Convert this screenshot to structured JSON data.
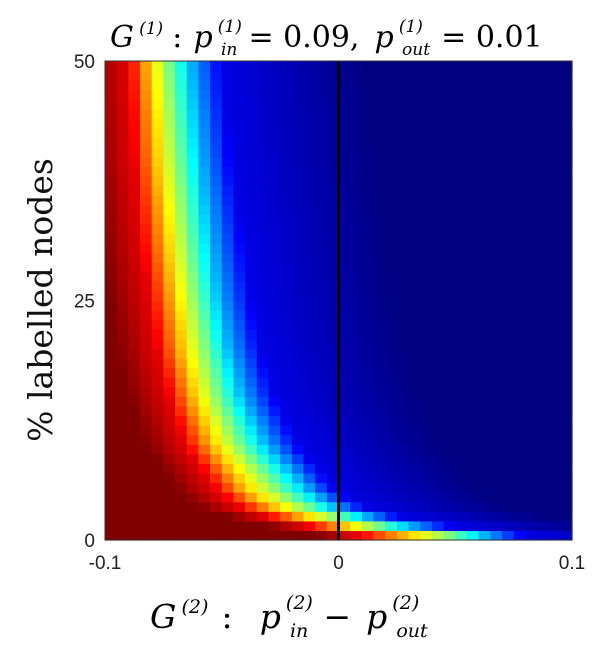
{
  "chart_data": {
    "type": "heatmap",
    "title": {
      "graph": "G",
      "graph_sup": "(1)",
      "colon": ":",
      "p_in_sym": "p",
      "p_in_sup": "(1)",
      "p_in_sub": "in",
      "p_in_value": "= 0.09,",
      "p_out_sym": "p",
      "p_out_sup": "(1)",
      "p_out_sub": "out",
      "p_out_value": "= 0.01"
    },
    "xlabel": {
      "graph": "G",
      "graph_sup": "(2)",
      "colon": ":",
      "p_in_sym": "p",
      "p_in_sup": "(2)",
      "p_in_sub": "in",
      "minus": "−",
      "p_out_sym": "p",
      "p_out_sup": "(2)",
      "p_out_sub": "out"
    },
    "ylabel": "% labelled nodes",
    "xlim": [
      -0.1,
      0.1
    ],
    "ylim": [
      0,
      50
    ],
    "x_ticks": [
      {
        "value": -0.1,
        "label": "-0.1"
      },
      {
        "value": 0,
        "label": "0"
      },
      {
        "value": 0.1,
        "label": "0.1"
      }
    ],
    "y_ticks": [
      {
        "value": 0,
        "label": "0"
      },
      {
        "value": 25,
        "label": "25"
      },
      {
        "value": 50,
        "label": "50"
      }
    ],
    "grid": false,
    "colormap": "jet",
    "color_range": [
      0,
      1
    ],
    "n_x_cells": 40,
    "n_y_cells": 50,
    "reference_line_x": 0,
    "reference_line_color": "#000000",
    "contour_levels_x_at_y": {
      "y": [
        0,
        1,
        3,
        5,
        10,
        15,
        20,
        25,
        30,
        40,
        50
      ],
      "level_0.9": [
        0.02,
        -0.005,
        -0.04,
        -0.052,
        -0.066,
        -0.073,
        -0.078,
        -0.081,
        -0.084,
        -0.088,
        -0.09
      ],
      "level_0.7": [
        0.045,
        0.01,
        -0.025,
        -0.04,
        -0.055,
        -0.063,
        -0.068,
        -0.071,
        -0.074,
        -0.079,
        -0.082
      ],
      "level_0.5": [
        0.07,
        0.025,
        -0.01,
        -0.025,
        -0.043,
        -0.052,
        -0.057,
        -0.061,
        -0.064,
        -0.069,
        -0.073
      ],
      "level_0.3": [
        0.085,
        0.04,
        0.002,
        -0.012,
        -0.031,
        -0.041,
        -0.047,
        -0.051,
        -0.054,
        -0.059,
        -0.063
      ],
      "level_0.1": [
        0.1,
        0.06,
        0.015,
        0.0,
        -0.017,
        -0.027,
        -0.033,
        -0.037,
        -0.04,
        -0.046,
        -0.05
      ]
    }
  }
}
